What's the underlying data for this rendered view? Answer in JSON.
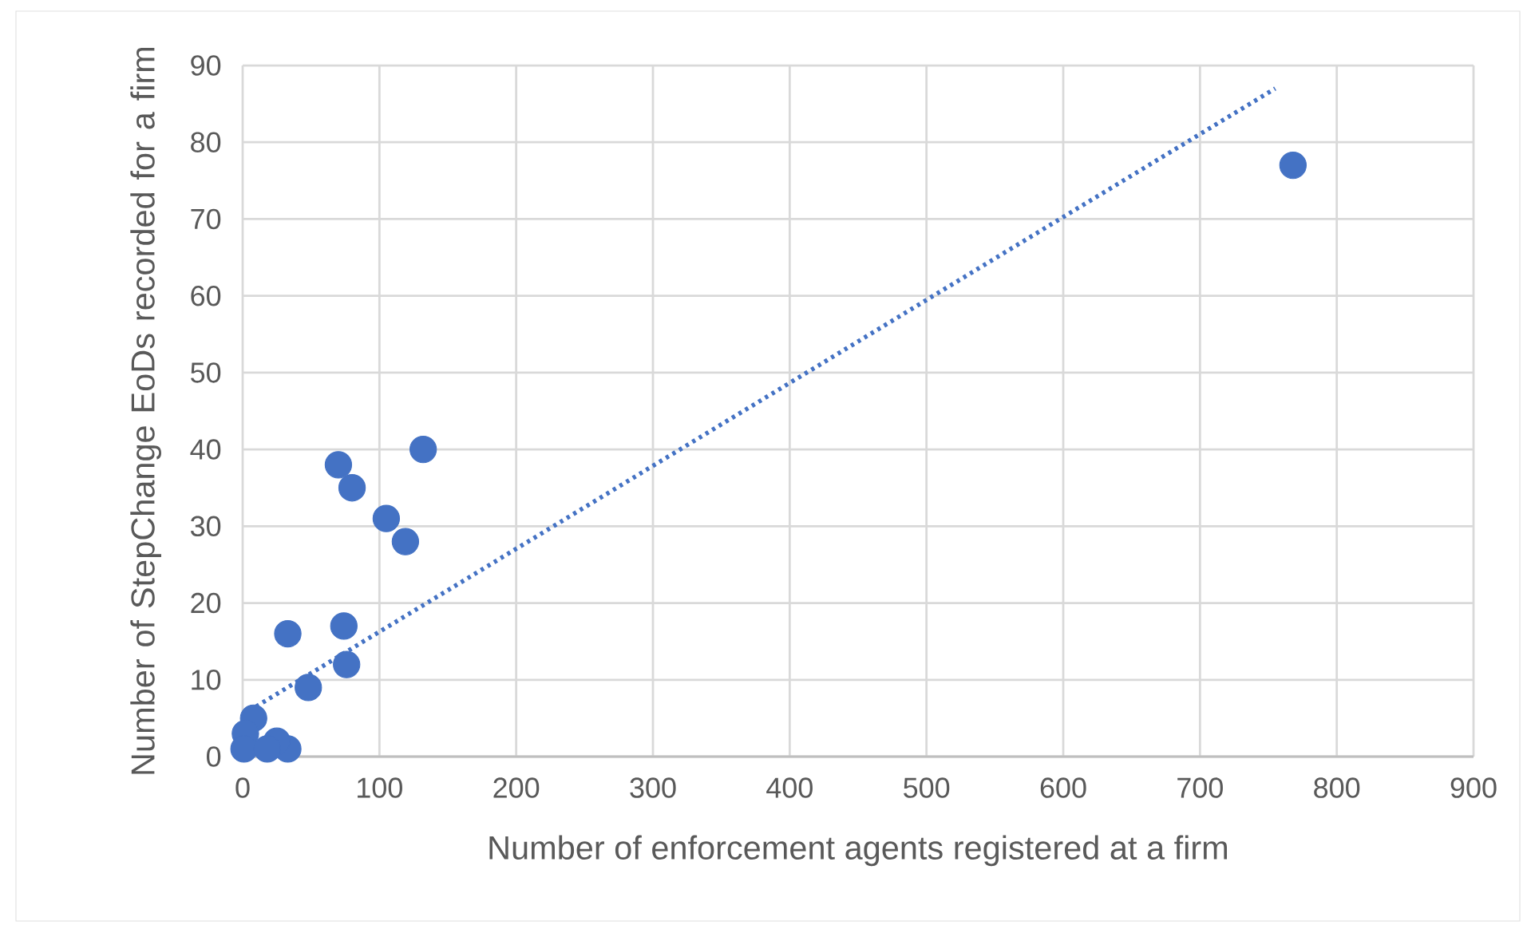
{
  "chart_data": {
    "type": "scatter",
    "xlabel": "Number of enforcement agents registered at a firm",
    "ylabel": "Number of StepChange EoDs recorded for a firm",
    "xlim": [
      0,
      900
    ],
    "ylim": [
      0,
      90
    ],
    "xticks": [
      0,
      100,
      200,
      300,
      400,
      500,
      600,
      700,
      800,
      900
    ],
    "yticks": [
      0,
      10,
      20,
      30,
      40,
      50,
      60,
      70,
      80,
      90
    ],
    "grid": true,
    "series": [
      {
        "marker": "circle",
        "color": "#4472c4",
        "x": [
          768,
          132,
          70,
          80,
          105,
          119,
          33,
          74,
          76,
          48,
          33,
          8,
          2,
          1,
          25,
          18
        ],
        "values": [
          77,
          40,
          38,
          35,
          31,
          28,
          16,
          17,
          12,
          9,
          1,
          5,
          3,
          1,
          2,
          1
        ]
      },
      {
        "type": "line",
        "marker": "none",
        "color": "#4472c4",
        "line_style": "dotted",
        "x": [
          5,
          755
        ],
        "values": [
          6,
          87
        ]
      }
    ]
  }
}
